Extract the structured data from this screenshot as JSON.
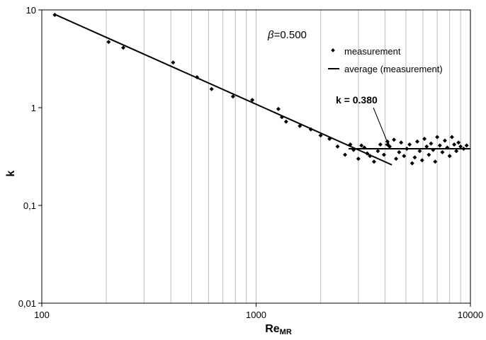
{
  "chart_data": {
    "type": "scatter",
    "x_scale": "log",
    "y_scale": "log",
    "xlim": [
      100,
      10000
    ],
    "ylim": [
      0.01,
      10
    ],
    "grid": "vertical",
    "xlabel": "Re",
    "xlabel_sub": "MR",
    "ylabel": "k",
    "x_tick_labels": [
      {
        "value": 100,
        "label": "100"
      },
      {
        "value": 1000,
        "label": "1000"
      },
      {
        "value": 10000,
        "label": "10000"
      }
    ],
    "y_tick_labels": [
      {
        "value": 10,
        "label": "10"
      },
      {
        "value": 1,
        "label": "1"
      },
      {
        "value": 0.1,
        "label": "0,1"
      },
      {
        "value": 0.01,
        "label": "0,01"
      }
    ],
    "annotations": {
      "beta_symbol": "β",
      "beta_value": "=0.500",
      "k_label": "k = 0.380"
    },
    "legend": {
      "position": "top-right",
      "items": [
        {
          "label": "measurement",
          "marker": "diamond"
        },
        {
          "label": "average (measurement)",
          "marker": "line"
        }
      ]
    },
    "series": [
      {
        "name": "measurement",
        "kind": "points",
        "points": [
          [
            115,
            8.9
          ],
          [
            205,
            4.7
          ],
          [
            240,
            4.1
          ],
          [
            410,
            2.9
          ],
          [
            530,
            2.05
          ],
          [
            620,
            1.55
          ],
          [
            780,
            1.3
          ],
          [
            960,
            1.2
          ],
          [
            1270,
            0.97
          ],
          [
            1320,
            0.8
          ],
          [
            1380,
            0.72
          ],
          [
            1600,
            0.65
          ],
          [
            1800,
            0.6
          ],
          [
            2000,
            0.52
          ],
          [
            2200,
            0.48
          ],
          [
            2400,
            0.4
          ],
          [
            2600,
            0.33
          ],
          [
            2750,
            0.42
          ],
          [
            2850,
            0.37
          ],
          [
            3000,
            0.3
          ],
          [
            3100,
            0.41
          ],
          [
            3200,
            0.39
          ],
          [
            3300,
            0.34
          ],
          [
            3400,
            0.32
          ],
          [
            3550,
            0.28
          ],
          [
            3700,
            0.36
          ],
          [
            3800,
            0.42
          ],
          [
            3950,
            0.33
          ],
          [
            4100,
            0.45
          ],
          [
            4200,
            0.4
          ],
          [
            4400,
            0.47
          ],
          [
            4500,
            0.3
          ],
          [
            4650,
            0.35
          ],
          [
            4750,
            0.44
          ],
          [
            4900,
            0.32
          ],
          [
            5050,
            0.38
          ],
          [
            5200,
            0.42
          ],
          [
            5350,
            0.27
          ],
          [
            5500,
            0.31
          ],
          [
            5650,
            0.45
          ],
          [
            5800,
            0.36
          ],
          [
            5950,
            0.29
          ],
          [
            6100,
            0.48
          ],
          [
            6250,
            0.4
          ],
          [
            6400,
            0.33
          ],
          [
            6550,
            0.43
          ],
          [
            6700,
            0.37
          ],
          [
            6850,
            0.28
          ],
          [
            7000,
            0.5
          ],
          [
            7200,
            0.41
          ],
          [
            7400,
            0.35
          ],
          [
            7600,
            0.46
          ],
          [
            7800,
            0.39
          ],
          [
            8000,
            0.32
          ],
          [
            8200,
            0.5
          ],
          [
            8400,
            0.42
          ],
          [
            8600,
            0.36
          ],
          [
            8800,
            0.44
          ],
          [
            9000,
            0.4
          ],
          [
            9300,
            0.38
          ],
          [
            9600,
            0.41
          ]
        ]
      },
      {
        "name": "trend",
        "kind": "line",
        "points": [
          [
            115,
            9.0
          ],
          [
            4300,
            0.26
          ]
        ]
      },
      {
        "name": "average (measurement)",
        "kind": "line",
        "points": [
          [
            2700,
            0.38
          ],
          [
            10000,
            0.38
          ]
        ]
      }
    ]
  }
}
